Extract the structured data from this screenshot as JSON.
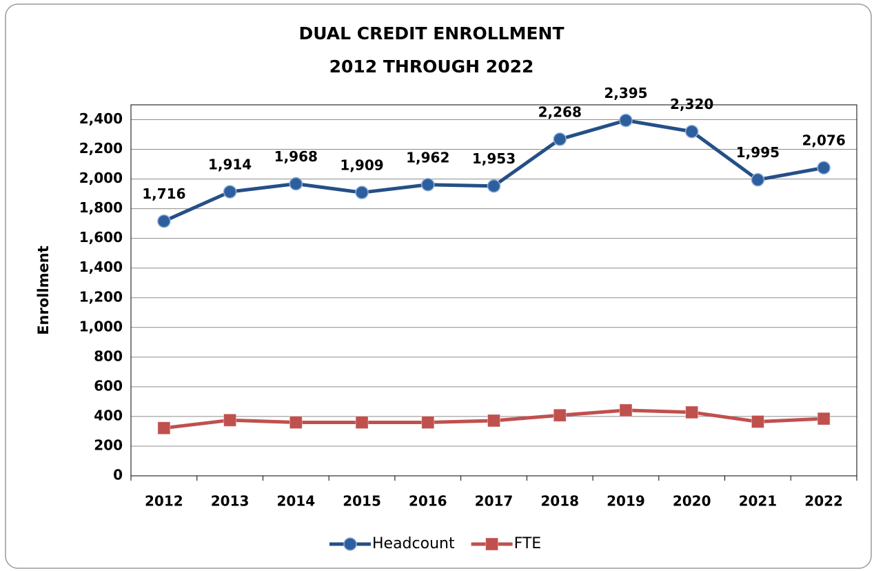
{
  "chart_data": {
    "type": "line",
    "title": [
      "DUAL CREDIT ENROLLMENT",
      "2012 THROUGH 2022"
    ],
    "y_label": "Enrollment",
    "categories": [
      "2012",
      "2013",
      "2014",
      "2015",
      "2016",
      "2017",
      "2018",
      "2019",
      "2020",
      "2021",
      "2022"
    ],
    "series": [
      {
        "name": "Headcount",
        "color": "#254f87",
        "marker": "circle",
        "values": [
          1716,
          1914,
          1968,
          1909,
          1962,
          1953,
          2268,
          2395,
          2320,
          1995,
          2076
        ],
        "value_labels": [
          "1,716",
          "1,914",
          "1,968",
          "1,909",
          "1,962",
          "1,953",
          "2,268",
          "2,395",
          "2,320",
          "1,995",
          "2,076"
        ]
      },
      {
        "name": "FTE",
        "color": "#c0504d",
        "marker": "square",
        "values": [
          322,
          375,
          360,
          360,
          360,
          372,
          408,
          442,
          428,
          365,
          385
        ]
      }
    ],
    "ylim": [
      0,
      2500
    ],
    "yticks": [
      0,
      200,
      400,
      600,
      800,
      {
        "value": 1000,
        "label": "1,000"
      },
      {
        "value": 1200,
        "label": "1,200"
      },
      {
        "value": 1400,
        "label": "1,400"
      },
      {
        "value": 1600,
        "label": "1,600"
      },
      {
        "value": 1800,
        "label": "1,800"
      },
      {
        "value": 2000,
        "label": "2,000"
      },
      {
        "value": 2200,
        "label": "2,200"
      },
      {
        "value": 2400,
        "label": "2,400"
      }
    ],
    "grid": true,
    "legend": "bottom"
  }
}
